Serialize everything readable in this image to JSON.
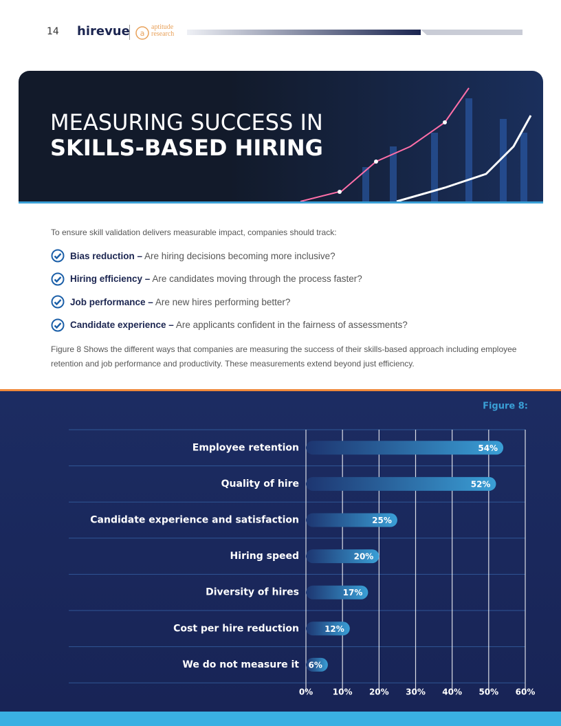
{
  "header": {
    "page_number": "14",
    "brand": "hirevue",
    "partner_top": "aptitude",
    "partner_bottom": "research"
  },
  "hero": {
    "title_line1": "MEASURING SUCCESS IN",
    "title_line2": "SKILLS-BASED HIRING"
  },
  "intro": "To ensure skill validation delivers measurable impact, companies should track:",
  "bullets": [
    {
      "term": "Bias reduction –",
      "text": "Are hiring decisions becoming more inclusive?"
    },
    {
      "term": "Hiring efficiency –",
      "text": "Are candidates moving through the process faster?"
    },
    {
      "term": "Job performance –",
      "text": "Are new hires performing better?"
    },
    {
      "term": "Candidate experience –",
      "text": "Are applicants confident in the fairness of assessments?"
    }
  ],
  "paragraph": "Figure 8 Shows the different ways that companies are measuring the success of their skills-based approach including employee retention and job performance and productivity. These measurements extend beyond just efficiency.",
  "chart_data": {
    "type": "hbar",
    "title": "Figure 8:",
    "categories": [
      "Employee retention",
      "Quality of hire",
      "Candidate experience and satisfaction",
      "Hiring speed",
      "Diversity of hires",
      "Cost per hire reduction",
      "We do not measure it"
    ],
    "values": [
      54,
      52,
      25,
      20,
      17,
      12,
      6
    ],
    "value_labels": [
      "54%",
      "52%",
      "25%",
      "20%",
      "17%",
      "12%",
      "6%"
    ],
    "xlim": [
      0,
      60
    ],
    "xticks": [
      {
        "value": 0,
        "label": "0%"
      },
      {
        "value": 10,
        "label": "10%"
      },
      {
        "value": 20,
        "label": "20%"
      },
      {
        "value": 30,
        "label": "30%"
      },
      {
        "value": 40,
        "label": "40%"
      },
      {
        "value": 50,
        "label": "50%"
      },
      {
        "value": 60,
        "label": "60%"
      }
    ],
    "grid": true,
    "color": "#3a9fd6"
  }
}
